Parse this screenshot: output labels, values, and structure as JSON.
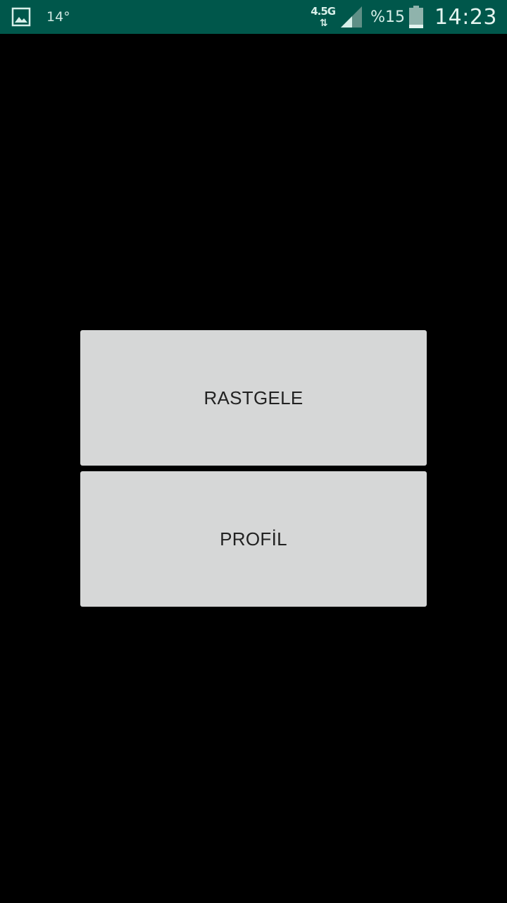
{
  "status_bar": {
    "temperature": "14°",
    "network_type": "4.5G",
    "network_arrows": "⇅",
    "battery_percent": "%15",
    "time": "14:23",
    "background_color": "#00574b",
    "icons": [
      "gallery-icon",
      "signal-icon",
      "battery-icon"
    ]
  },
  "main": {
    "buttons": [
      {
        "label": "RASTGELE"
      },
      {
        "label": "PROFİL"
      }
    ],
    "button_color": "#d6d7d7",
    "background_color": "#000000"
  }
}
